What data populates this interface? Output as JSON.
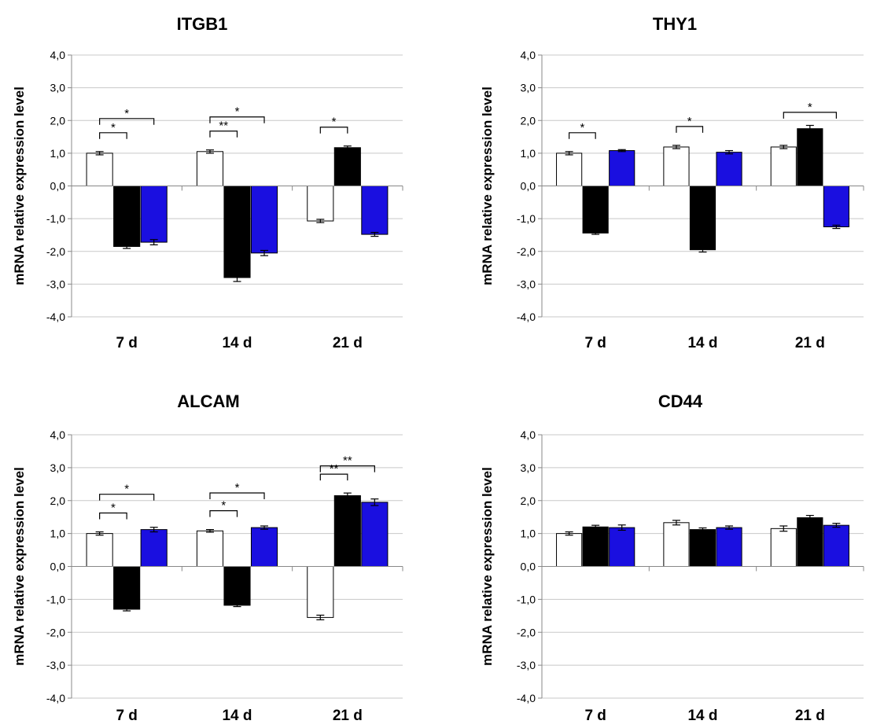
{
  "chart_data": [
    {
      "type": "bar",
      "title": "ITGB1",
      "ylabel": "mRNA relative expression level",
      "categories": [
        "7 d",
        "14 d",
        "21 d"
      ],
      "ylim": [
        -4.0,
        4.0
      ],
      "yticks": [
        "4,0",
        "3,0",
        "2,0",
        "1,0",
        "0,0",
        "-1,0",
        "-2,0",
        "-3,0",
        "-4,0"
      ],
      "grid": true,
      "series": [
        {
          "color": "#ffffff",
          "values": [
            1.0,
            1.05,
            -1.07
          ],
          "errors": [
            0.05,
            0.05,
            0.05
          ]
        },
        {
          "color": "#000000",
          "values": [
            -1.85,
            -2.8,
            1.17
          ],
          "errors": [
            0.06,
            0.12,
            0.05
          ]
        },
        {
          "color": "#1a0fe0",
          "values": [
            -1.72,
            -2.05,
            -1.48
          ],
          "errors": [
            0.08,
            0.08,
            0.06
          ]
        }
      ],
      "annotations": [
        {
          "label": "*",
          "category": 0,
          "from": 0,
          "to": 1,
          "level": 1
        },
        {
          "label": "*",
          "category": 0,
          "from": 0,
          "to": 2,
          "level": 2
        },
        {
          "label": "**",
          "category": 1,
          "from": 0,
          "to": 1,
          "level": 1
        },
        {
          "label": "*",
          "category": 1,
          "from": 0,
          "to": 2,
          "level": 2
        },
        {
          "label": "*",
          "category": 2,
          "from": 0,
          "to": 1,
          "level": 1
        }
      ]
    },
    {
      "type": "bar",
      "title": "THY1",
      "ylabel": "mRNA relative expression level",
      "categories": [
        "7 d",
        "14 d",
        "21 d"
      ],
      "ylim": [
        -4.0,
        4.0
      ],
      "yticks": [
        "4,0",
        "3,0",
        "2,0",
        "1,0",
        "0,0",
        "-1,0",
        "-2,0",
        "-3,0",
        "-4,0"
      ],
      "grid": true,
      "series": [
        {
          "color": "#ffffff",
          "values": [
            1.0,
            1.19,
            1.19
          ],
          "errors": [
            0.05,
            0.05,
            0.05
          ]
        },
        {
          "color": "#000000",
          "values": [
            -1.44,
            -1.95,
            1.75
          ],
          "errors": [
            0.04,
            0.07,
            0.1
          ]
        },
        {
          "color": "#1a0fe0",
          "values": [
            1.08,
            1.03,
            -1.25
          ],
          "errors": [
            0.03,
            0.05,
            0.05
          ]
        }
      ],
      "annotations": [
        {
          "label": "*",
          "category": 0,
          "from": 0,
          "to": 1,
          "level": 1
        },
        {
          "label": "*",
          "category": 1,
          "from": 0,
          "to": 1,
          "level": 1
        },
        {
          "label": "*",
          "category": 2,
          "from": 0,
          "to": 2,
          "level": 2
        }
      ]
    },
    {
      "type": "bar",
      "title": "ALCAM",
      "ylabel": "mRNA relative expression level",
      "categories": [
        "7 d",
        "14 d",
        "21 d"
      ],
      "ylim": [
        -4.0,
        4.0
      ],
      "yticks": [
        "4,0",
        "3,0",
        "2,0",
        "1,0",
        "0,0",
        "-1,0",
        "-2,0",
        "-3,0",
        "-4,0"
      ],
      "grid": true,
      "series": [
        {
          "color": "#ffffff",
          "values": [
            1.0,
            1.08,
            -1.55
          ],
          "errors": [
            0.05,
            0.04,
            0.07
          ]
        },
        {
          "color": "#000000",
          "values": [
            -1.3,
            -1.18,
            2.15
          ],
          "errors": [
            0.05,
            0.04,
            0.08
          ]
        },
        {
          "color": "#1a0fe0",
          "values": [
            1.12,
            1.18,
            1.95
          ],
          "errors": [
            0.07,
            0.05,
            0.1
          ]
        }
      ],
      "annotations": [
        {
          "label": "*",
          "category": 0,
          "from": 0,
          "to": 1,
          "level": 1
        },
        {
          "label": "*",
          "category": 0,
          "from": 0,
          "to": 2,
          "level": 2
        },
        {
          "label": "*",
          "category": 1,
          "from": 0,
          "to": 1,
          "level": 1
        },
        {
          "label": "*",
          "category": 1,
          "from": 0,
          "to": 2,
          "level": 2
        },
        {
          "label": "**",
          "category": 2,
          "from": 0,
          "to": 1,
          "level": 1
        },
        {
          "label": "**",
          "category": 2,
          "from": 0,
          "to": 2,
          "level": 2
        }
      ]
    },
    {
      "type": "bar",
      "title": "CD44",
      "ylabel": "mRNA relative expression level",
      "categories": [
        "7 d",
        "14 d",
        "21 d"
      ],
      "ylim": [
        -4.0,
        4.0
      ],
      "yticks": [
        "4,0",
        "3,0",
        "2,0",
        "1,0",
        "0,0",
        "-1,0",
        "-2,0",
        "-3,0",
        "-4,0"
      ],
      "grid": true,
      "series": [
        {
          "color": "#ffffff",
          "values": [
            1.0,
            1.33,
            1.15
          ],
          "errors": [
            0.05,
            0.07,
            0.08
          ]
        },
        {
          "color": "#000000",
          "values": [
            1.2,
            1.12,
            1.48
          ],
          "errors": [
            0.05,
            0.05,
            0.07
          ]
        },
        {
          "color": "#1a0fe0",
          "values": [
            1.18,
            1.18,
            1.25
          ],
          "errors": [
            0.08,
            0.05,
            0.06
          ]
        }
      ],
      "annotations": []
    }
  ]
}
